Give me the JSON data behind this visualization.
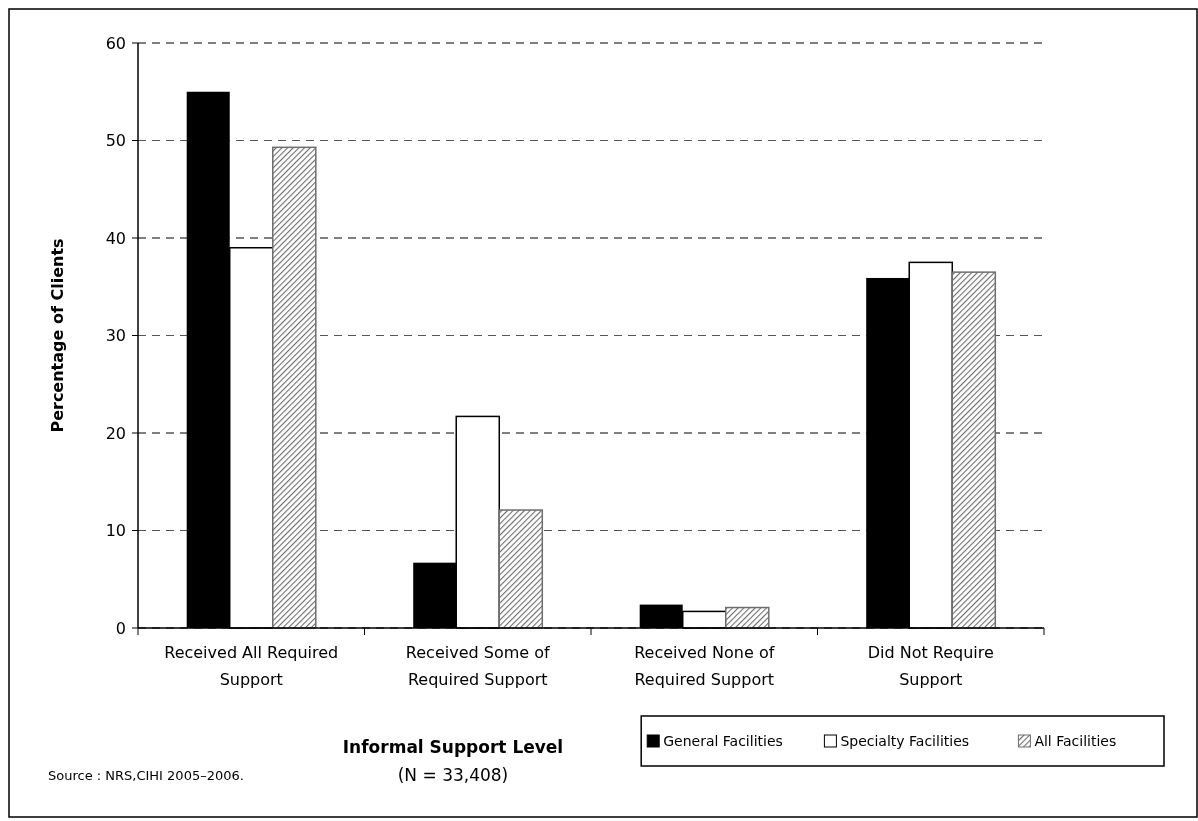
{
  "chart_data": {
    "type": "bar",
    "xlabel": "Informal Support Level",
    "ylabel": "Percentage of Clients",
    "categories": [
      "Received All Required Support",
      "Received Some of Required Support",
      "Received None of Required Support",
      "Did Not Require Support"
    ],
    "series": [
      {
        "name": "General Facilities",
        "color": "#000000",
        "values": [
          55.0,
          6.7,
          2.4,
          35.9
        ]
      },
      {
        "name": "Specialty Facilities",
        "color": "#ffffff",
        "values": [
          39.0,
          21.7,
          1.7,
          37.5
        ]
      },
      {
        "name": "All Facilities",
        "color": "#6e6e6e",
        "values": [
          49.3,
          12.1,
          2.1,
          36.5
        ]
      }
    ],
    "ylim": [
      0,
      60
    ],
    "yticks": [
      0,
      10,
      20,
      30,
      40,
      50,
      60
    ],
    "grid": "y",
    "legend": "bottom right",
    "annotations": [
      "(N = 33,408)",
      "Source : NRS,CIHI 2005–2006."
    ]
  }
}
